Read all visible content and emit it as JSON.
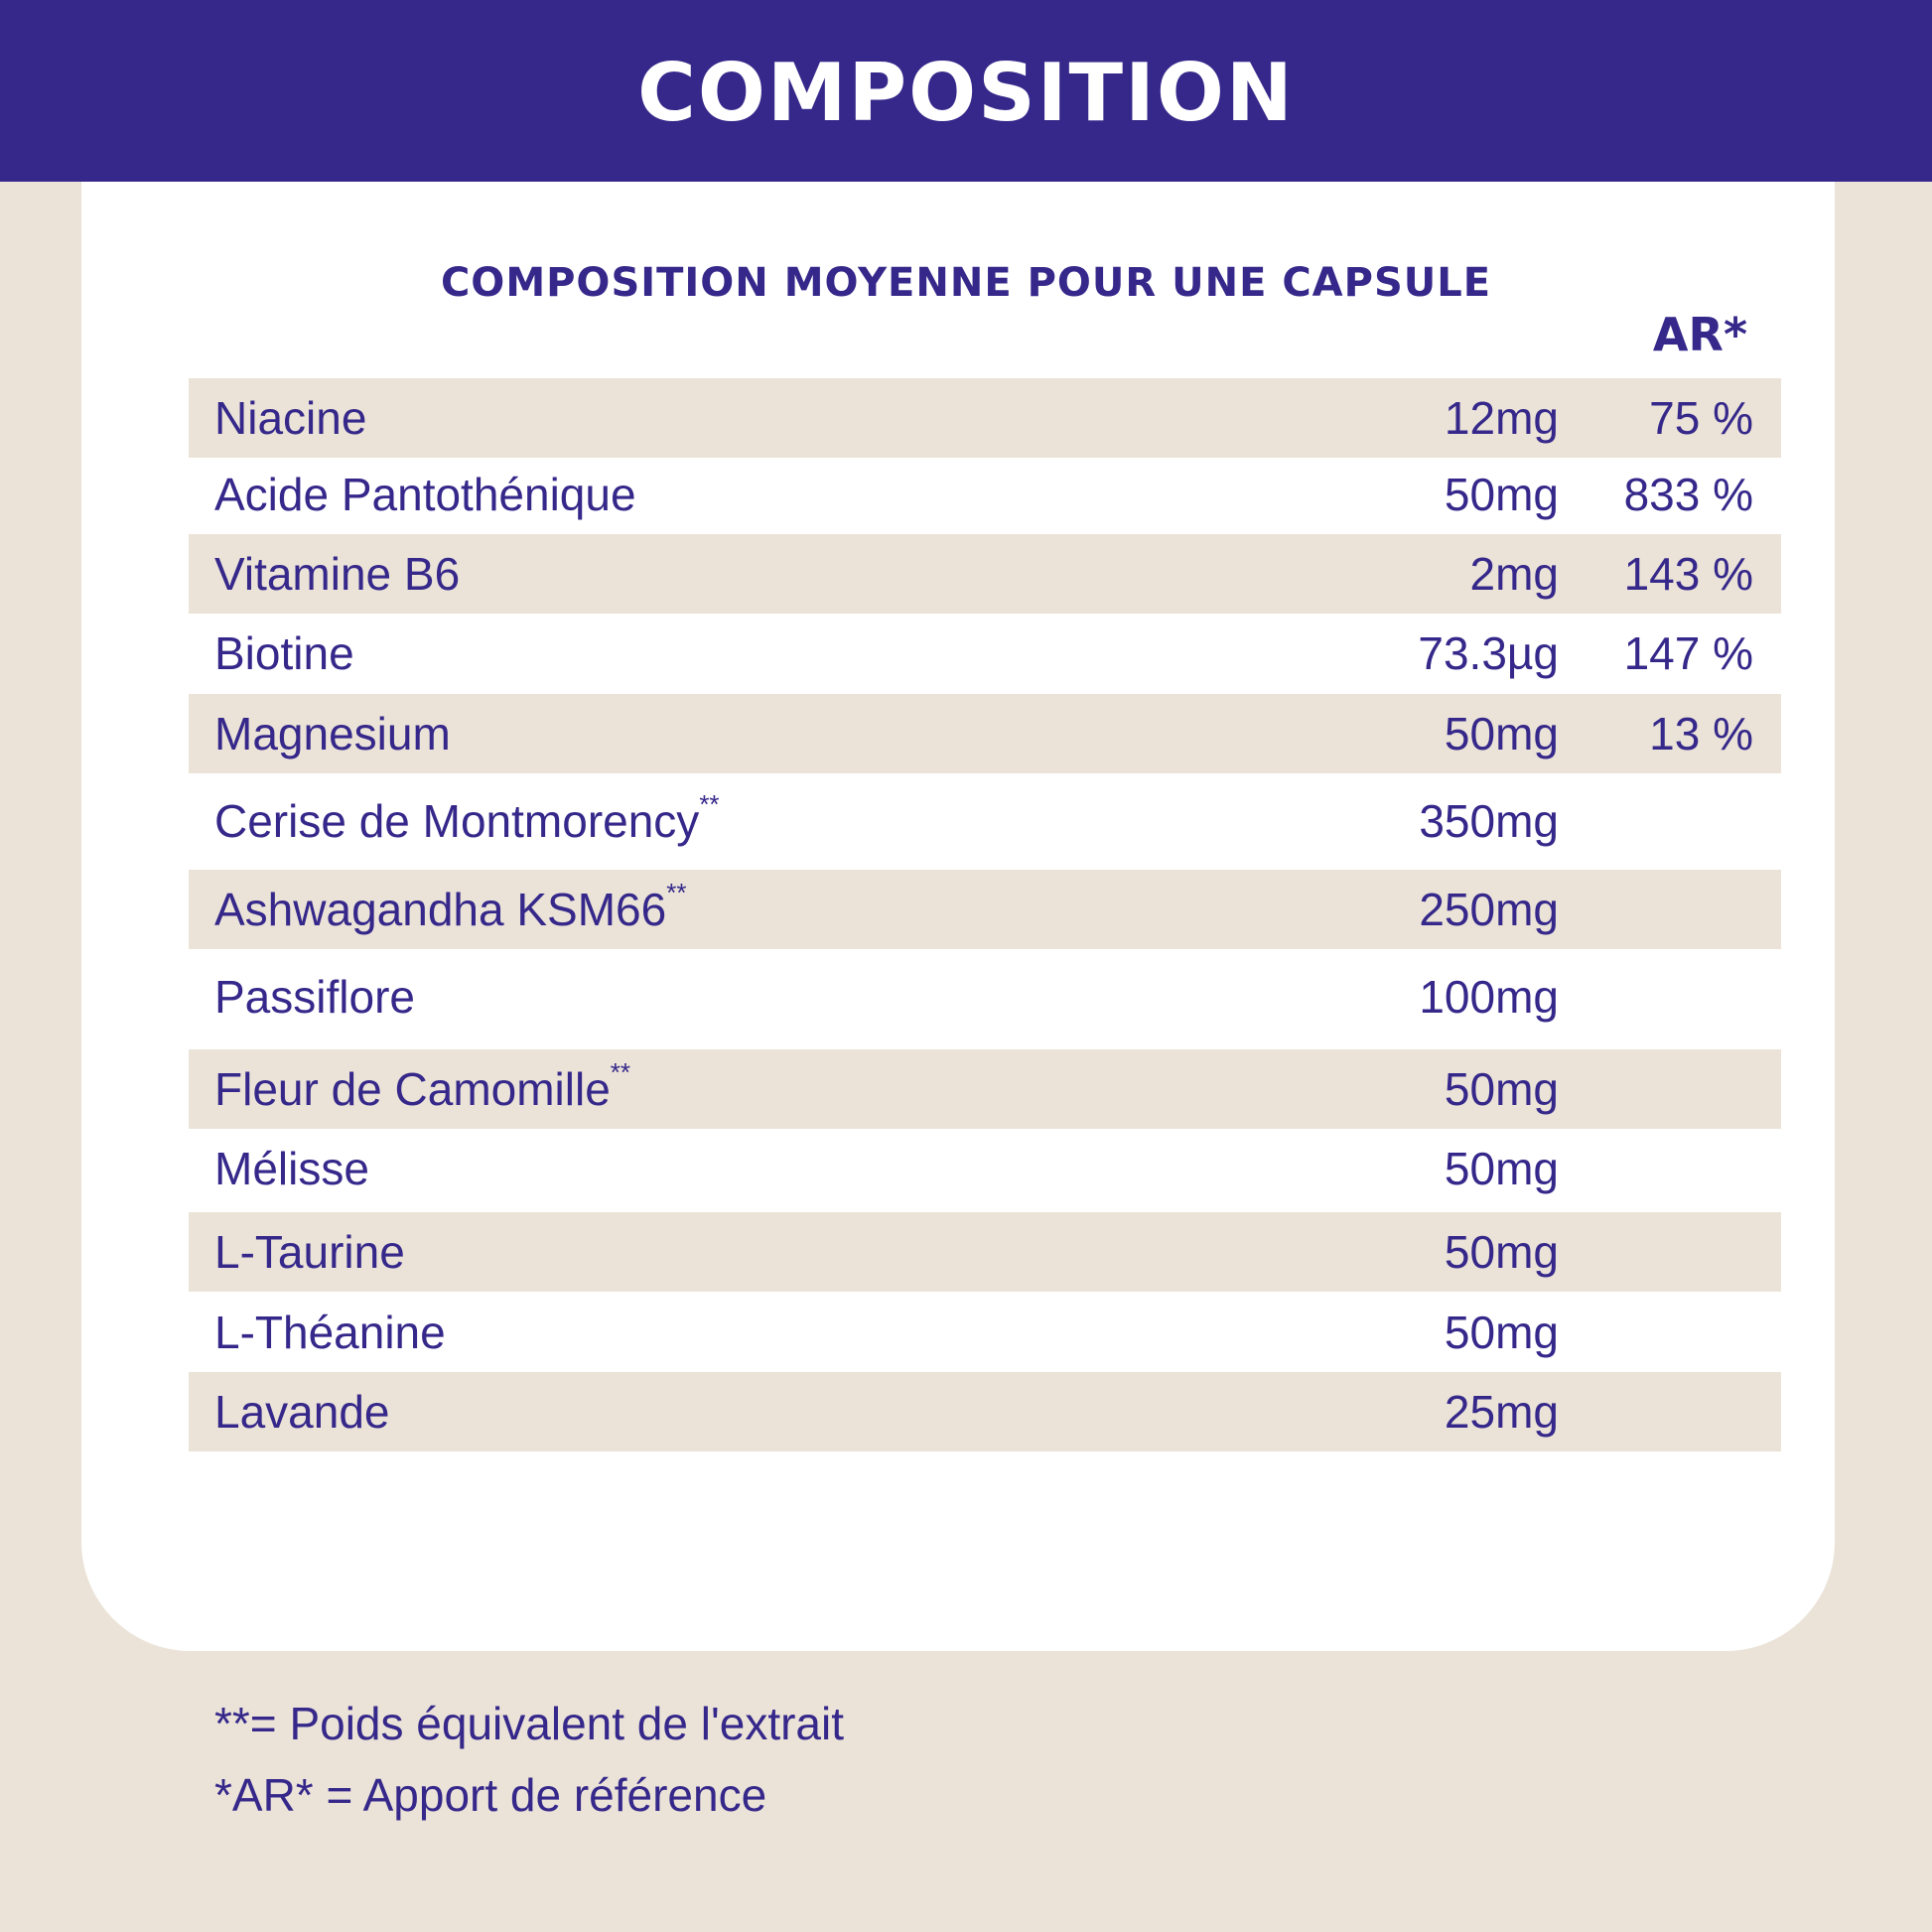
{
  "header": {
    "title": "COMPOSITION"
  },
  "table": {
    "subtitle": "COMPOSITION MOYENNE POUR UNE CAPSULE",
    "ar_header": "AR*",
    "rows": [
      {
        "name": "Niacine",
        "mark": "",
        "amount": "12mg",
        "ar": "75 %"
      },
      {
        "name": "Acide Pantothénique",
        "mark": "",
        "amount": "50mg",
        "ar": "833 %"
      },
      {
        "name": "Vitamine B6",
        "mark": "",
        "amount": "2mg",
        "ar": "143 %"
      },
      {
        "name": "Biotine",
        "mark": "",
        "amount": "73.3µg",
        "ar": "147 %"
      },
      {
        "name": "Magnesium",
        "mark": "",
        "amount": "50mg",
        "ar": "13 %"
      },
      {
        "name": "Cerise de Montmorency",
        "mark": "**",
        "amount": "350mg",
        "ar": ""
      },
      {
        "name": "Ashwagandha KSM66",
        "mark": "**",
        "amount": "250mg",
        "ar": ""
      },
      {
        "name": "Passiflore",
        "mark": "",
        "amount": "100mg",
        "ar": ""
      },
      {
        "name": "Fleur de Camomille",
        "mark": "**",
        "amount": "50mg",
        "ar": ""
      },
      {
        "name": "Mélisse",
        "mark": "",
        "amount": "50mg",
        "ar": ""
      },
      {
        "name": "L-Taurine",
        "mark": "",
        "amount": "50mg",
        "ar": ""
      },
      {
        "name": "L-Théanine",
        "mark": "",
        "amount": "50mg",
        "ar": ""
      },
      {
        "name": "Lavande",
        "mark": "",
        "amount": "25mg",
        "ar": ""
      }
    ]
  },
  "notes": {
    "extract": "**= Poids équivalent de l'extrait",
    "reference": "*AR* = Apport de référence"
  },
  "colors": {
    "brand": "#36288a",
    "beige": "#ebe3d8",
    "white": "#ffffff"
  }
}
